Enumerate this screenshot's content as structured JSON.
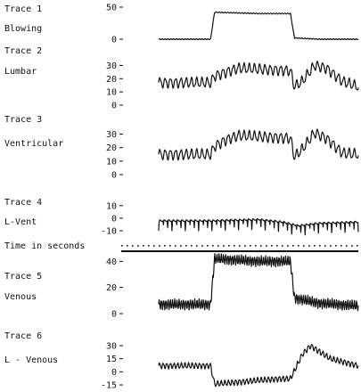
{
  "chart_data": {
    "type": "line",
    "ink_color": "#111111",
    "background": "#ffffff",
    "grid": false,
    "panels": [
      {
        "label": "Trace 1",
        "sublabel": "Blowing",
        "ticks": [
          0,
          50
        ],
        "tick_labels": [
          "0",
          "50"
        ],
        "ylim": [
          0,
          50
        ],
        "x": [
          0,
          0.18,
          0.26,
          0.28,
          0.5,
          0.66,
          0.68,
          0.8,
          1.0
        ],
        "values": [
          0,
          0,
          0,
          42,
          40,
          40,
          2,
          0,
          0
        ]
      },
      {
        "label": "Trace 2",
        "sublabel": "Lumbar",
        "ticks": [
          0,
          10,
          20,
          30
        ],
        "tick_labels": [
          "0",
          "10",
          "20",
          "30"
        ],
        "ylim": [
          0,
          35
        ],
        "x": [
          0,
          0.26,
          0.28,
          0.34,
          0.4,
          0.66,
          0.68,
          0.72,
          0.78,
          0.84,
          0.92,
          1.0
        ],
        "values": [
          17,
          17,
          22,
          25,
          28,
          26,
          14,
          18,
          30,
          28,
          18,
          14
        ]
      },
      {
        "label": "Trace 3",
        "sublabel": "Ventricular",
        "ticks": [
          0,
          10,
          20,
          30
        ],
        "tick_labels": [
          "0",
          "10",
          "20",
          "30"
        ],
        "ylim": [
          0,
          35
        ],
        "x": [
          0,
          0.26,
          0.28,
          0.34,
          0.4,
          0.66,
          0.68,
          0.72,
          0.78,
          0.84,
          0.92,
          1.0
        ],
        "values": [
          15,
          15,
          21,
          26,
          29,
          27,
          13,
          19,
          31,
          27,
          16,
          15
        ]
      },
      {
        "label": "Trace 4",
        "sublabel": "L-Vent",
        "ticks": [
          -10,
          0,
          10
        ],
        "tick_labels": [
          "-10",
          "0",
          "10"
        ],
        "ylim": [
          -15,
          12
        ],
        "x": [
          0,
          0.26,
          0.5,
          0.62,
          0.7,
          0.8,
          1.0
        ],
        "values": [
          -2,
          -2,
          -1,
          -3,
          -6,
          -4,
          -3
        ]
      },
      {
        "label": "Trace 5",
        "sublabel": "Venous",
        "ticks": [
          0,
          20,
          40
        ],
        "tick_labels": [
          "0",
          "20",
          "40"
        ],
        "ylim": [
          0,
          45
        ],
        "x": [
          0,
          0.26,
          0.28,
          0.5,
          0.66,
          0.68,
          0.8,
          1.0
        ],
        "values": [
          7,
          7,
          42,
          40,
          40,
          12,
          8,
          6
        ]
      },
      {
        "label": "Trace 6",
        "sublabel": "L - Venous",
        "ticks": [
          -15,
          0,
          15,
          30
        ],
        "tick_labels": [
          "-15",
          "0",
          "15",
          "30"
        ],
        "ylim": [
          -17,
          32
        ],
        "x": [
          0,
          0.26,
          0.28,
          0.6,
          0.66,
          0.72,
          0.76,
          0.86,
          1.0
        ],
        "values": [
          7,
          7,
          -14,
          -8,
          -8,
          20,
          30,
          15,
          7
        ]
      }
    ],
    "time_label": "Time in seconds"
  }
}
